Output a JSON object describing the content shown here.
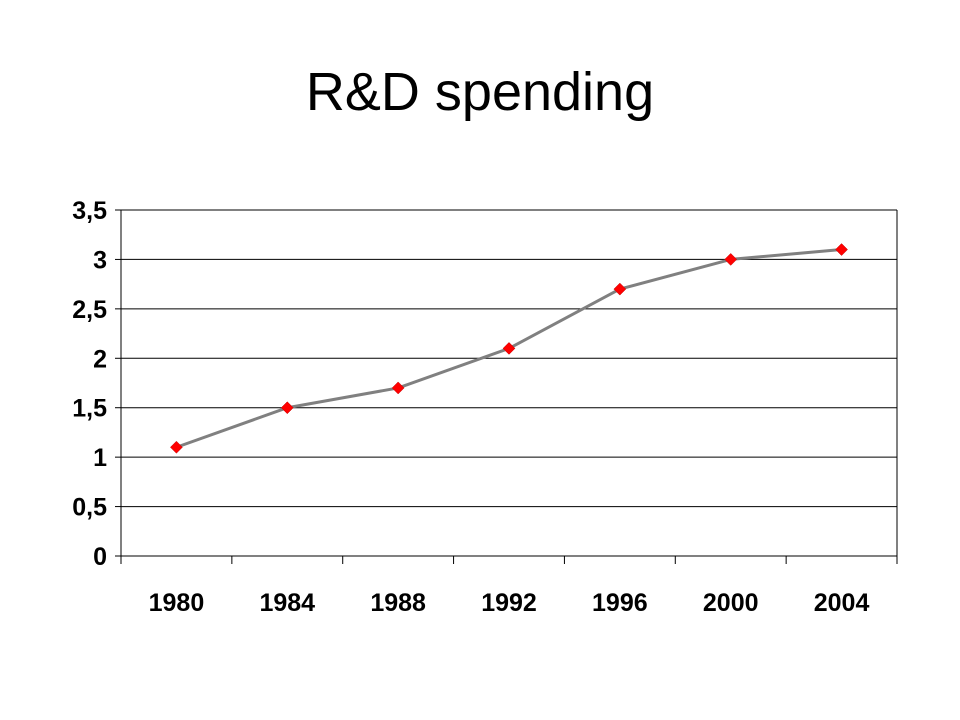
{
  "slide": {
    "title": "R&D spending"
  },
  "chart_data": {
    "type": "line",
    "title": "R&D spending",
    "xlabel": "",
    "ylabel": "",
    "categories": [
      "1980",
      "1984",
      "1988",
      "1992",
      "1996",
      "2000",
      "2004"
    ],
    "series": [
      {
        "values": [
          1.1,
          1.5,
          1.7,
          2.1,
          2.7,
          3.0,
          3.1
        ]
      }
    ],
    "ylim": [
      0,
      3.5
    ],
    "yticks": [
      "0",
      "0,5",
      "1",
      "1,5",
      "2",
      "2,5",
      "3",
      "3,5"
    ],
    "grid": true,
    "legend": "none",
    "colors": {
      "line": "#808080",
      "marker": "#ff0000",
      "axis": "#000000",
      "grid": "#000000"
    }
  }
}
